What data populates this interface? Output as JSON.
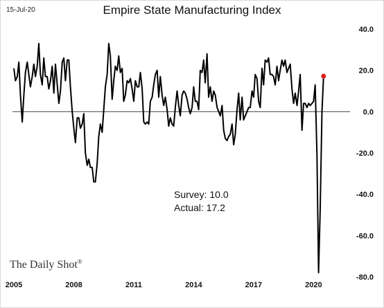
{
  "header": {
    "date_stamp": "15-Jul-20",
    "title": "Empire State Manufacturing Index"
  },
  "brand": {
    "name": "The Daily Shot",
    "mark": "®"
  },
  "chart_data": {
    "type": "line",
    "title": "Empire State Manufacturing Index",
    "xlabel": "",
    "ylabel": "",
    "xlim": [
      2005.0,
      2020.75
    ],
    "ylim": [
      -80,
      40
    ],
    "x_ticks": [
      2005,
      2008,
      2011,
      2014,
      2017,
      2020
    ],
    "y_ticks": [
      40,
      20,
      0,
      -20,
      -40,
      -60,
      -80
    ],
    "y_tick_labels": [
      "40.0",
      "20.0",
      "0.0",
      "-20.0",
      "-40.0",
      "-60.0",
      "-80.0"
    ],
    "y_axis_side": "right",
    "grid": false,
    "zero_line": true,
    "line_color": "#000000",
    "highlight_color": "#e0201b",
    "annotations": {
      "survey": "Survey: 10.0",
      "actual": "Actual:  17.2"
    },
    "series": [
      {
        "points": [
          [
            2005.0,
            21
          ],
          [
            2005.08,
            15
          ],
          [
            2005.17,
            17
          ],
          [
            2005.25,
            24
          ],
          [
            2005.33,
            8
          ],
          [
            2005.42,
            -5
          ],
          [
            2005.5,
            8
          ],
          [
            2005.58,
            19
          ],
          [
            2005.67,
            24
          ],
          [
            2005.75,
            18
          ],
          [
            2005.83,
            12
          ],
          [
            2005.92,
            17
          ],
          [
            2006.0,
            23
          ],
          [
            2006.08,
            17
          ],
          [
            2006.17,
            22
          ],
          [
            2006.25,
            33
          ],
          [
            2006.33,
            18
          ],
          [
            2006.42,
            13
          ],
          [
            2006.5,
            26
          ],
          [
            2006.58,
            17
          ],
          [
            2006.67,
            17
          ],
          [
            2006.75,
            11
          ],
          [
            2006.83,
            15
          ],
          [
            2006.92,
            22
          ],
          [
            2007.0,
            9
          ],
          [
            2007.08,
            23
          ],
          [
            2007.17,
            13
          ],
          [
            2007.25,
            4
          ],
          [
            2007.33,
            10
          ],
          [
            2007.42,
            24
          ],
          [
            2007.5,
            26
          ],
          [
            2007.58,
            15
          ],
          [
            2007.67,
            25
          ],
          [
            2007.75,
            25
          ],
          [
            2007.83,
            12
          ],
          [
            2007.92,
            0
          ],
          [
            2008.0,
            -8
          ],
          [
            2008.08,
            -15
          ],
          [
            2008.17,
            -3
          ],
          [
            2008.25,
            -3
          ],
          [
            2008.33,
            -8
          ],
          [
            2008.42,
            -6
          ],
          [
            2008.5,
            -1
          ],
          [
            2008.58,
            -20
          ],
          [
            2008.67,
            -26
          ],
          [
            2008.75,
            -23
          ],
          [
            2008.83,
            -27
          ],
          [
            2008.92,
            -27
          ],
          [
            2009.0,
            -34
          ],
          [
            2009.08,
            -34
          ],
          [
            2009.17,
            -25
          ],
          [
            2009.25,
            -12
          ],
          [
            2009.33,
            -6
          ],
          [
            2009.42,
            -10
          ],
          [
            2009.5,
            1
          ],
          [
            2009.58,
            12
          ],
          [
            2009.67,
            18
          ],
          [
            2009.75,
            33
          ],
          [
            2009.83,
            27
          ],
          [
            2009.92,
            6
          ],
          [
            2010.0,
            15
          ],
          [
            2010.08,
            22
          ],
          [
            2010.17,
            20
          ],
          [
            2010.25,
            27
          ],
          [
            2010.33,
            19
          ],
          [
            2010.42,
            21
          ],
          [
            2010.5,
            5
          ],
          [
            2010.58,
            8
          ],
          [
            2010.67,
            15
          ],
          [
            2010.75,
            14
          ],
          [
            2010.83,
            16
          ],
          [
            2010.92,
            11
          ],
          [
            2011.0,
            5
          ],
          [
            2011.08,
            15
          ],
          [
            2011.17,
            12
          ],
          [
            2011.25,
            12
          ],
          [
            2011.33,
            19
          ],
          [
            2011.42,
            11
          ],
          [
            2011.5,
            -5
          ],
          [
            2011.58,
            -6
          ],
          [
            2011.67,
            -5
          ],
          [
            2011.75,
            -6
          ],
          [
            2011.83,
            5
          ],
          [
            2011.92,
            7
          ],
          [
            2012.0,
            13
          ],
          [
            2012.08,
            18
          ],
          [
            2012.17,
            20
          ],
          [
            2012.25,
            7
          ],
          [
            2012.33,
            17
          ],
          [
            2012.42,
            8
          ],
          [
            2012.5,
            3
          ],
          [
            2012.58,
            7
          ],
          [
            2012.67,
            1
          ],
          [
            2012.75,
            -7
          ],
          [
            2012.83,
            -3
          ],
          [
            2012.92,
            -6
          ],
          [
            2013.0,
            -7
          ],
          [
            2013.08,
            2
          ],
          [
            2013.17,
            10
          ],
          [
            2013.25,
            3
          ],
          [
            2013.33,
            -2
          ],
          [
            2013.42,
            8
          ],
          [
            2013.5,
            10
          ],
          [
            2013.58,
            9
          ],
          [
            2013.67,
            6
          ],
          [
            2013.75,
            2
          ],
          [
            2013.83,
            -1
          ],
          [
            2013.92,
            2
          ],
          [
            2014.0,
            12
          ],
          [
            2014.08,
            5
          ],
          [
            2014.17,
            5
          ],
          [
            2014.25,
            1
          ],
          [
            2014.33,
            20
          ],
          [
            2014.42,
            19
          ],
          [
            2014.5,
            25
          ],
          [
            2014.58,
            14
          ],
          [
            2014.67,
            28
          ],
          [
            2014.75,
            7
          ],
          [
            2014.83,
            12
          ],
          [
            2014.92,
            5
          ],
          [
            2015.0,
            10
          ],
          [
            2015.08,
            8
          ],
          [
            2015.17,
            2
          ],
          [
            2015.25,
            0
          ],
          [
            2015.33,
            -2
          ],
          [
            2015.42,
            3
          ],
          [
            2015.5,
            -9
          ],
          [
            2015.58,
            -13
          ],
          [
            2015.67,
            -14
          ],
          [
            2015.75,
            -12
          ],
          [
            2015.83,
            -11
          ],
          [
            2015.92,
            -6
          ],
          [
            2016.0,
            -16
          ],
          [
            2016.08,
            -11
          ],
          [
            2016.17,
            1
          ],
          [
            2016.25,
            9
          ],
          [
            2016.33,
            -4
          ],
          [
            2016.42,
            7
          ],
          [
            2016.5,
            -4
          ],
          [
            2016.58,
            -2
          ],
          [
            2016.67,
            0
          ],
          [
            2016.75,
            2
          ],
          [
            2016.83,
            2
          ],
          [
            2016.92,
            10
          ],
          [
            2017.0,
            7
          ],
          [
            2017.08,
            18
          ],
          [
            2017.17,
            16
          ],
          [
            2017.25,
            5
          ],
          [
            2017.33,
            2
          ],
          [
            2017.42,
            21
          ],
          [
            2017.5,
            13
          ],
          [
            2017.58,
            25
          ],
          [
            2017.67,
            24
          ],
          [
            2017.75,
            26
          ],
          [
            2017.83,
            18
          ],
          [
            2017.92,
            18
          ],
          [
            2018.0,
            17
          ],
          [
            2018.08,
            13
          ],
          [
            2018.17,
            22
          ],
          [
            2018.25,
            15
          ],
          [
            2018.33,
            20
          ],
          [
            2018.42,
            25
          ],
          [
            2018.5,
            22
          ],
          [
            2018.58,
            25
          ],
          [
            2018.67,
            19
          ],
          [
            2018.75,
            21
          ],
          [
            2018.83,
            23
          ],
          [
            2018.92,
            11
          ],
          [
            2019.0,
            4
          ],
          [
            2019.08,
            9
          ],
          [
            2019.17,
            3
          ],
          [
            2019.25,
            10
          ],
          [
            2019.33,
            18
          ],
          [
            2019.42,
            -9
          ],
          [
            2019.5,
            4
          ],
          [
            2019.58,
            4
          ],
          [
            2019.67,
            2
          ],
          [
            2019.75,
            4
          ],
          [
            2019.83,
            3
          ],
          [
            2019.92,
            4
          ],
          [
            2020.0,
            5
          ],
          [
            2020.08,
            13
          ],
          [
            2020.17,
            -21
          ],
          [
            2020.25,
            -78
          ],
          [
            2020.33,
            -48
          ],
          [
            2020.42,
            -0.2
          ],
          [
            2020.5,
            17.2
          ]
        ]
      }
    ],
    "highlight_point": [
      2020.5,
      17.2
    ]
  }
}
